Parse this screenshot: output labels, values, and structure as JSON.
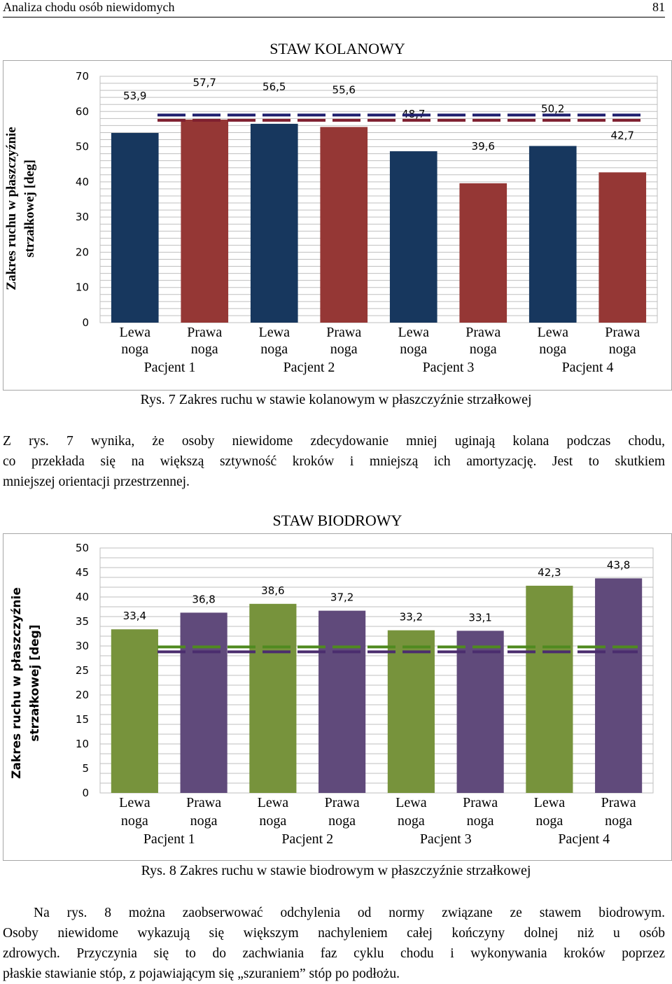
{
  "header": {
    "title": "Analiza chodu osób niewidomych",
    "page_number": "81"
  },
  "figure1": {
    "caption": "Rys. 7 Zakres ruchu w stawie kolanowym w płaszczyźnie strzałkowej",
    "chart_data": {
      "type": "bar",
      "title": "STAW KOLANOWY",
      "ylabel_lines": [
        "Zakres ruchu w płaszczyźnie",
        "strzałkowej  [deg]"
      ],
      "ylim": [
        0,
        70
      ],
      "yticks": [
        0,
        10,
        20,
        30,
        40,
        50,
        60,
        70
      ],
      "groups": [
        "Pacjent 1",
        "Pacjent 2",
        "Pacjent 3",
        "Pacjent 4"
      ],
      "bar_labels": [
        [
          "Lewa",
          "noga"
        ],
        [
          "Prawa",
          "noga"
        ]
      ],
      "values": [
        53.9,
        57.7,
        56.5,
        55.6,
        48.7,
        39.6,
        50.2,
        42.7
      ],
      "value_labels": [
        "53,9",
        "57,7",
        "56,5",
        "55,6",
        "48,7",
        "39,6",
        "50,2",
        "42,7"
      ],
      "norm_lines": [
        59,
        57.5
      ],
      "colors": {
        "left": "#17375e",
        "right": "#953735",
        "norm_left": "#1f1f6e",
        "norm_right": "#7f1f2f"
      }
    }
  },
  "paragraph1": [
    "Z rys. 7 wynika, że osoby niewidome zdecydowanie mniej uginają kolana podczas chodu,",
    "co przekłada się na większą sztywność kroków i mniejszą ich amortyzację. Jest to skutkiem",
    "mniejszej orientacji przestrzennej."
  ],
  "figure2": {
    "caption": "Rys. 8 Zakres ruchu w stawie biodrowym w płaszczyźnie strzałkowej",
    "chart_data": {
      "type": "bar",
      "title": "STAW BIODROWY",
      "ylabel_lines": [
        "Zakres ruchu w płaszczyźnie",
        "strzałkowej [deg]"
      ],
      "ylim": [
        0,
        50
      ],
      "yticks": [
        0,
        5,
        10,
        15,
        20,
        25,
        30,
        35,
        40,
        45,
        50
      ],
      "groups": [
        "Pacjent 1",
        "Pacjent 2",
        "Pacjent 3",
        "Pacjent 4"
      ],
      "bar_labels": [
        [
          "Lewa",
          "noga"
        ],
        [
          "Prawa",
          "noga"
        ]
      ],
      "values": [
        33.4,
        36.8,
        38.6,
        37.2,
        33.2,
        33.1,
        42.3,
        43.8
      ],
      "value_labels": [
        "33,4",
        "36,8",
        "38,6",
        "37,2",
        "33,2",
        "33,1",
        "42,3",
        "43,8"
      ],
      "norm_lines": [
        29.8,
        28.8
      ],
      "colors": {
        "left": "#77933c",
        "right": "#604a7b",
        "norm_left": "#4f8a1f",
        "norm_right": "#4b2d6e"
      }
    }
  },
  "paragraph2": [
    "Na rys. 8 można zaobserwować odchylenia od normy związane ze stawem biodrowym.",
    "Osoby niewidome wykazują się większym nachyleniem całej kończyny dolnej niż u osób",
    "zdrowych. Przyczynia się to do zachwiania faz cyklu chodu i wykonywania kroków poprzez",
    "płaskie stawianie stóp, z pojawiającym się „szuraniem” stóp po podłożu."
  ]
}
